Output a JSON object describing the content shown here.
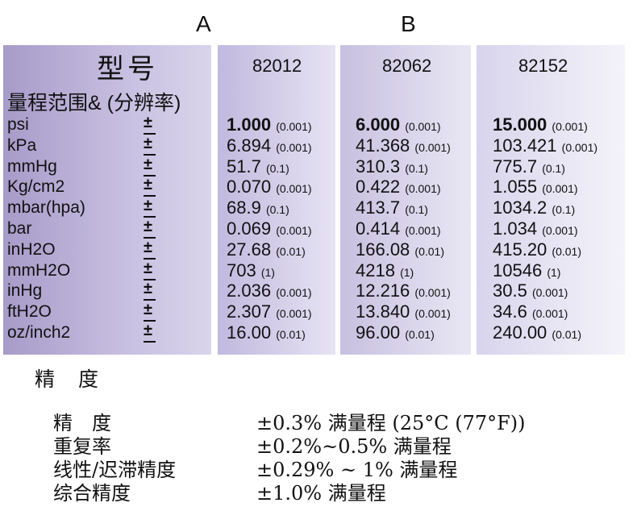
{
  "columns": {
    "a": "A",
    "b": "B"
  },
  "header": {
    "model_label": "型号",
    "range_label": "量程范围& (分辨率)",
    "models": [
      "82012",
      "82062",
      "82152"
    ]
  },
  "pm_symbol": "±",
  "rows": [
    {
      "unit": "psi",
      "v": [
        {
          "main": "1.000",
          "res": "(0.001)",
          "bold": true
        },
        {
          "main": "6.000",
          "res": "(0.001)",
          "bold": true
        },
        {
          "main": "15.000",
          "res": "(0.001)",
          "bold": true
        }
      ]
    },
    {
      "unit": "kPa",
      "v": [
        {
          "main": "6.894",
          "res": "(0.001)"
        },
        {
          "main": "41.368",
          "res": "(0.001)"
        },
        {
          "main": "103.421",
          "res": "(0.001)"
        }
      ]
    },
    {
      "unit": "mmHg",
      "v": [
        {
          "main": "51.7",
          "res": "(0.1)"
        },
        {
          "main": "310.3",
          "res": "(0.1)"
        },
        {
          "main": "775.7",
          "res": "(0.1)"
        }
      ]
    },
    {
      "unit": "Kg/cm2",
      "v": [
        {
          "main": "0.070",
          "res": "(0.001)"
        },
        {
          "main": "0.422",
          "res": "(0.001)"
        },
        {
          "main": "1.055",
          "res": "(0.001)"
        }
      ]
    },
    {
      "unit": "mbar(hpa)",
      "v": [
        {
          "main": "68.9",
          "res": "(0.1)"
        },
        {
          "main": "413.7",
          "res": "(0.1)"
        },
        {
          "main": "1034.2",
          "res": "(0.1)"
        }
      ]
    },
    {
      "unit": "bar",
      "v": [
        {
          "main": "0.069",
          "res": "(0.001)"
        },
        {
          "main": "0.414",
          "res": "(0.001)"
        },
        {
          "main": "1.034",
          "res": "(0.001)"
        }
      ]
    },
    {
      "unit": "inH2O",
      "v": [
        {
          "main": "27.68",
          "res": "(0.01)"
        },
        {
          "main": "166.08",
          "res": "(0.01)"
        },
        {
          "main": "415.20",
          "res": "(0.01)"
        }
      ]
    },
    {
      "unit": "mmH2O",
      "v": [
        {
          "main": "703",
          "res": "(1)"
        },
        {
          "main": "4218",
          "res": "(1)"
        },
        {
          "main": "10546",
          "res": "(1)"
        }
      ]
    },
    {
      "unit": "inHg",
      "v": [
        {
          "main": "2.036",
          "res": "(0.001)"
        },
        {
          "main": "12.216",
          "res": "(0.001)"
        },
        {
          "main": "30.5",
          "res": "(0.001)"
        }
      ]
    },
    {
      "unit": "ftH2O",
      "v": [
        {
          "main": "2.307",
          "res": "(0.001)"
        },
        {
          "main": "13.840",
          "res": "(0.001)"
        },
        {
          "main": "34.6",
          "res": "(0.001)"
        }
      ]
    },
    {
      "unit": "oz/inch2",
      "v": [
        {
          "main": "16.00",
          "res": "(0.01)"
        },
        {
          "main": "96.00",
          "res": "(0.01)"
        },
        {
          "main": "240.00",
          "res": "(0.01)"
        }
      ]
    }
  ],
  "accuracy": {
    "heading": "精　度",
    "items": [
      {
        "label": "精　度",
        "value": "±0.3% 满量程 (25°C (77°F))"
      },
      {
        "label": "重复率",
        "value": "±0.2%~0.5% 满量程"
      },
      {
        "label": "线性/迟滞精度",
        "value": "±0.29% ~ 1% 满量程"
      },
      {
        "label": "综合精度",
        "value": "±1.0% 满量程"
      }
    ]
  }
}
